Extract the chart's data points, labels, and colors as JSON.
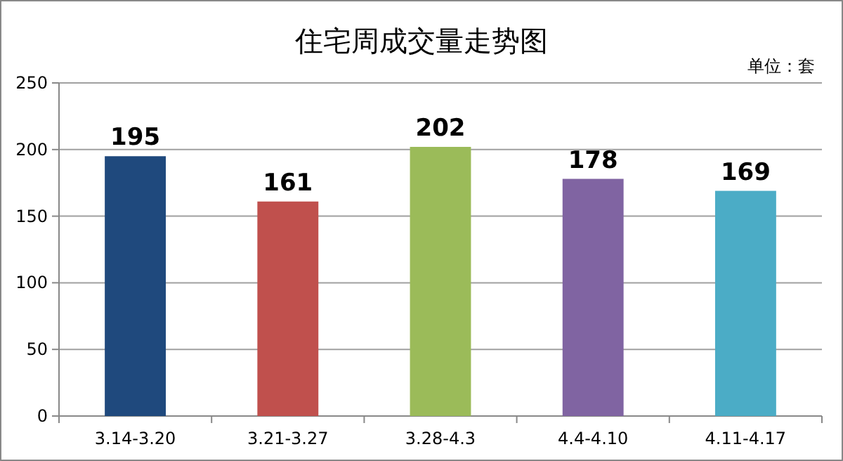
{
  "chart_data": {
    "type": "bar",
    "title": "住宅周成交量走势图",
    "annotations": [
      "单位：套"
    ],
    "categories": [
      "3.14-3.20",
      "3.21-3.27",
      "3.28-4.3",
      "4.4-4.10",
      "4.11-4.17"
    ],
    "values": [
      195,
      161,
      202,
      178,
      169
    ],
    "colors": [
      "#1f497d",
      "#c0504d",
      "#9bbb59",
      "#8064a2",
      "#4bacc6"
    ],
    "ylim": [
      0,
      250
    ],
    "yticks": [
      0,
      50,
      100,
      150,
      200,
      250
    ],
    "grid": "y",
    "data_labels": true
  }
}
